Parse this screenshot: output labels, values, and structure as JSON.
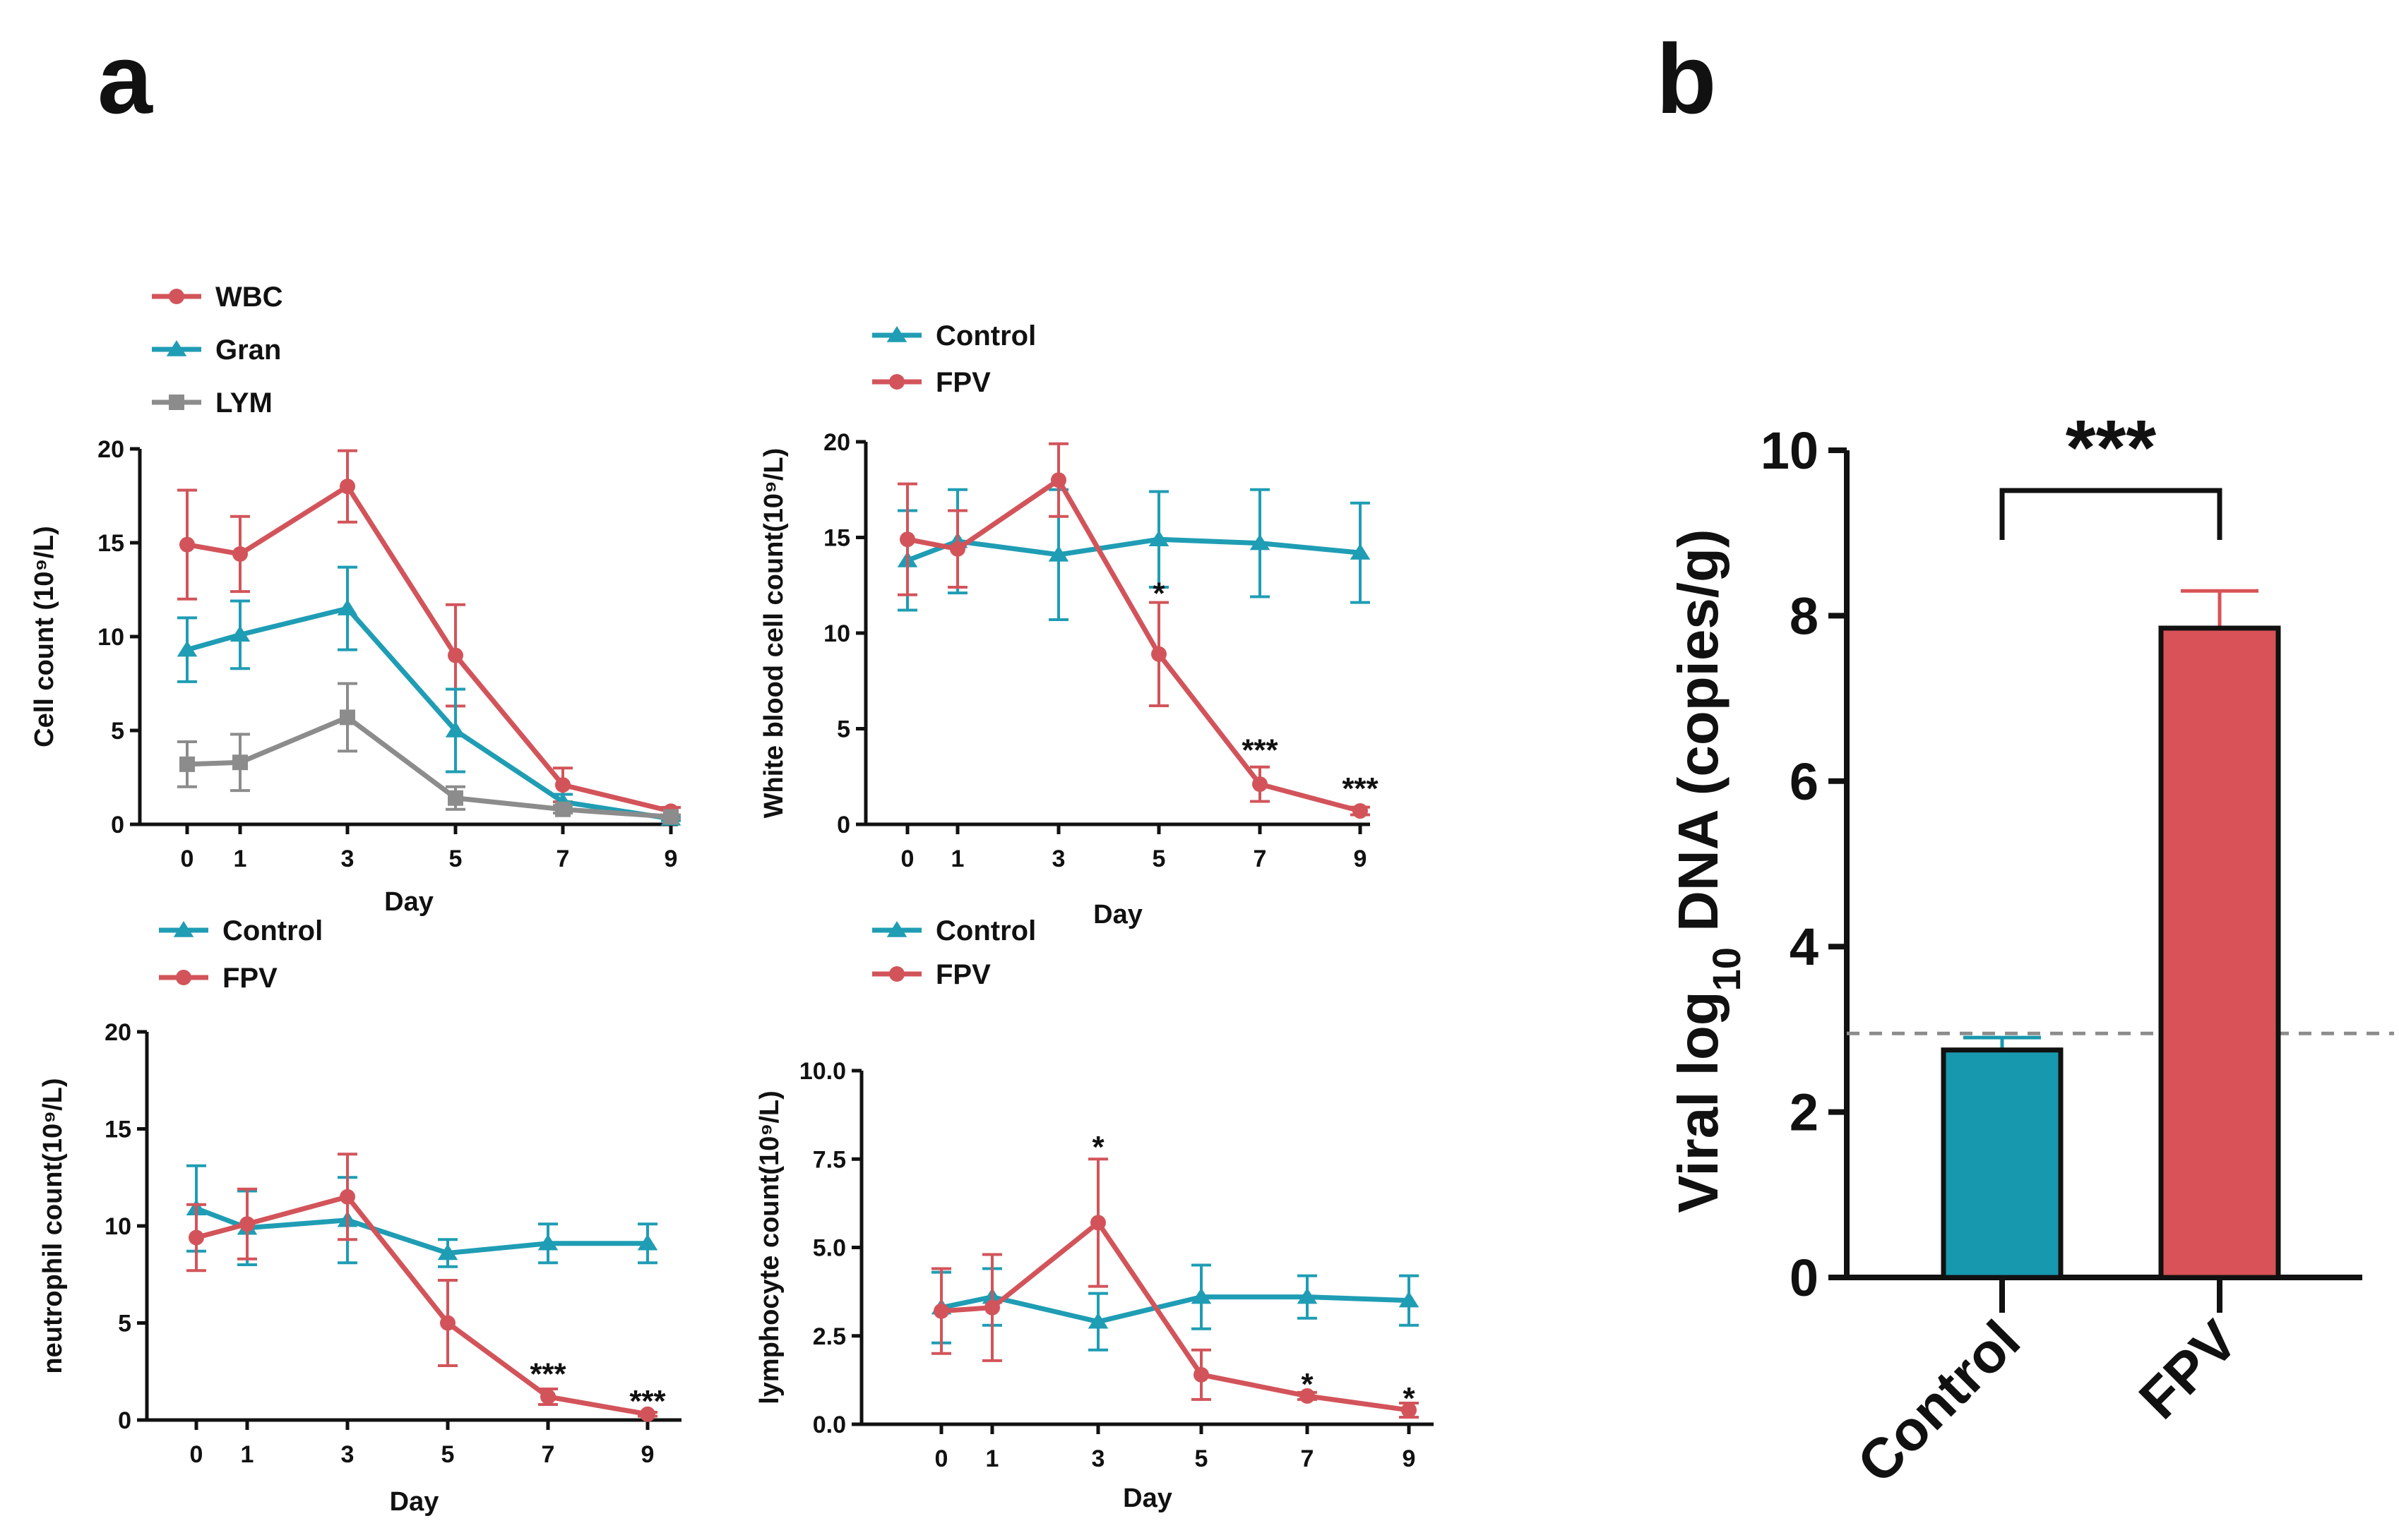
{
  "panel_labels": {
    "a": "a",
    "b": "b"
  },
  "colors": {
    "red": "#d2545a",
    "teal": "#1f9db4",
    "gray": "#8c8c8c",
    "bar_teal": "#1798ae",
    "bar_red": "#d85257"
  },
  "chart_data": [
    {
      "id": "a1",
      "type": "line",
      "xlabel": "Day",
      "ylabel": "Cell count (10⁹/L)",
      "ylim": [
        0,
        20
      ],
      "yticks": [
        0,
        5,
        10,
        15,
        20
      ],
      "xticks": [
        0,
        1,
        3,
        5,
        7,
        9
      ],
      "legend_position": "top-left",
      "series": [
        {
          "name": "WBC",
          "color": "#d2545a",
          "marker": "circle",
          "x": [
            0,
            1,
            3,
            5,
            7,
            9
          ],
          "y": [
            14.9,
            14.4,
            18.0,
            9.0,
            2.1,
            0.7
          ],
          "err": [
            2.9,
            2.0,
            1.9,
            2.7,
            0.9,
            0.2
          ]
        },
        {
          "name": "Gran",
          "color": "#1f9db4",
          "marker": "triangle",
          "x": [
            0,
            1,
            3,
            5,
            7,
            9
          ],
          "y": [
            9.3,
            10.1,
            11.5,
            5.0,
            1.2,
            0.3
          ],
          "err": [
            1.7,
            1.8,
            2.2,
            2.2,
            0.4,
            0.1
          ]
        },
        {
          "name": "LYM",
          "color": "#8c8c8c",
          "marker": "square",
          "x": [
            0,
            1,
            3,
            5,
            7,
            9
          ],
          "y": [
            3.2,
            3.3,
            5.7,
            1.4,
            0.8,
            0.4
          ],
          "err": [
            1.2,
            1.5,
            1.8,
            0.6,
            0.2,
            0.1
          ]
        }
      ],
      "annotations": []
    },
    {
      "id": "a2",
      "type": "line",
      "xlabel": "Day",
      "ylabel": "White blood cell count(10⁹/L)",
      "ylim": [
        0,
        20
      ],
      "yticks": [
        0,
        5,
        10,
        15,
        20
      ],
      "xticks": [
        0,
        1,
        3,
        5,
        7,
        9
      ],
      "legend_position": "top-left",
      "series": [
        {
          "name": "Control",
          "color": "#1f9db4",
          "marker": "triangle",
          "x": [
            0,
            1,
            3,
            5,
            7,
            9
          ],
          "y": [
            13.8,
            14.8,
            14.1,
            14.9,
            14.7,
            14.2
          ],
          "err": [
            2.6,
            2.7,
            3.4,
            2.5,
            2.8,
            2.6
          ]
        },
        {
          "name": "FPV",
          "color": "#d2545a",
          "marker": "circle",
          "x": [
            0,
            1,
            3,
            5,
            7,
            9
          ],
          "y": [
            14.9,
            14.4,
            18.0,
            8.9,
            2.1,
            0.7
          ],
          "err": [
            2.9,
            2.0,
            1.9,
            2.7,
            0.9,
            0.2
          ]
        }
      ],
      "annotations": [
        {
          "x": 5,
          "y": 12.2,
          "text": "*"
        },
        {
          "x": 7,
          "y": 4.0,
          "text": "***"
        },
        {
          "x": 9,
          "y": 2.0,
          "text": "***"
        }
      ]
    },
    {
      "id": "a3",
      "type": "line",
      "xlabel": "Day",
      "ylabel": "neutrophil count(10⁹/L)",
      "ylim": [
        0,
        20
      ],
      "yticks": [
        0,
        5,
        10,
        15,
        20
      ],
      "xticks": [
        0,
        1,
        3,
        5,
        7,
        9
      ],
      "legend_position": "top-left",
      "series": [
        {
          "name": "Control",
          "color": "#1f9db4",
          "marker": "triangle",
          "x": [
            0,
            1,
            3,
            5,
            7,
            9
          ],
          "y": [
            10.9,
            9.9,
            10.3,
            8.6,
            9.1,
            9.1
          ],
          "err": [
            2.2,
            1.9,
            2.2,
            0.7,
            1.0,
            1.0
          ]
        },
        {
          "name": "FPV",
          "color": "#d2545a",
          "marker": "circle",
          "x": [
            0,
            1,
            3,
            5,
            7,
            9
          ],
          "y": [
            9.4,
            10.1,
            11.5,
            5.0,
            1.2,
            0.3
          ],
          "err": [
            1.7,
            1.8,
            2.2,
            2.2,
            0.4,
            0.1
          ]
        }
      ],
      "annotations": [
        {
          "x": 7,
          "y": 2.5,
          "text": "***"
        },
        {
          "x": 9,
          "y": 1.1,
          "text": "***"
        }
      ]
    },
    {
      "id": "a4",
      "type": "line",
      "xlabel": "Day",
      "ylabel": "lymphocyte  count(10⁹/L)",
      "ylim": [
        0,
        10
      ],
      "yticks": [
        0.0,
        2.5,
        5.0,
        7.5,
        10.0
      ],
      "ytick_labels": [
        "0.0",
        "2.5",
        "5.0",
        "7.5",
        "10.0"
      ],
      "xticks": [
        0,
        1,
        3,
        5,
        7,
        9
      ],
      "legend_position": "top-left",
      "series": [
        {
          "name": "Control",
          "color": "#1f9db4",
          "marker": "triangle",
          "x": [
            0,
            1,
            3,
            5,
            7,
            9
          ],
          "y": [
            3.3,
            3.6,
            2.9,
            3.6,
            3.6,
            3.5
          ],
          "err": [
            1.0,
            0.8,
            0.8,
            0.9,
            0.6,
            0.7
          ]
        },
        {
          "name": "FPV",
          "color": "#d2545a",
          "marker": "circle",
          "x": [
            0,
            1,
            3,
            5,
            7,
            9
          ],
          "y": [
            3.2,
            3.3,
            5.7,
            1.4,
            0.8,
            0.4
          ],
          "err": [
            1.2,
            1.5,
            1.8,
            0.7,
            0.1,
            0.2
          ]
        }
      ],
      "annotations": [
        {
          "x": 3,
          "y": 7.9,
          "text": "*"
        },
        {
          "x": 7,
          "y": 1.2,
          "text": "*"
        },
        {
          "x": 9,
          "y": 0.8,
          "text": "*"
        }
      ]
    },
    {
      "id": "b",
      "type": "bar",
      "ylabel_parts": [
        "Viral log",
        "10",
        " DNA  (copies/g)"
      ],
      "categories": [
        "Control",
        "FPV"
      ],
      "values": [
        2.75,
        7.85
      ],
      "err": [
        0.15,
        0.45
      ],
      "colors": [
        "#1798ae",
        "#d85257"
      ],
      "ylim": [
        0,
        10
      ],
      "yticks": [
        0,
        2,
        4,
        6,
        8,
        10
      ],
      "detection_limit": 2.95,
      "significance": "***"
    }
  ]
}
